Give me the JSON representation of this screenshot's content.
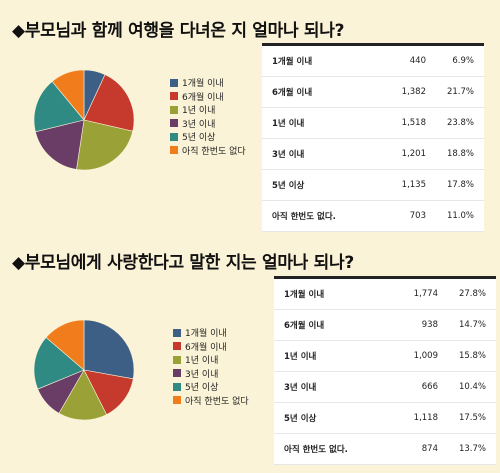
{
  "colors": [
    "#3d5f86",
    "#c63a2e",
    "#9aa136",
    "#6a3d66",
    "#2f8a84",
    "#f07c1c"
  ],
  "chart_data": [
    {
      "type": "pie",
      "title": "◆부모님과 함께 여행을 다녀온 지 얼마나 되나?",
      "categories": [
        "1개월 이내",
        "6개월 이내",
        "1년 이내",
        "3년 이내",
        "5년 이상",
        "아직 한번도 없다"
      ],
      "legend_labels": [
        "1개월 이내",
        "6개월 이내",
        "1년 이내",
        "3년 이내",
        "5년 이상",
        "아직 한번도 없다"
      ],
      "table_labels": [
        "1개월 이내",
        "6개월 이내",
        "1년 이내",
        "3년 이내",
        "5년 이상",
        "아직 한번도 없다."
      ],
      "counts": [
        "440",
        "1,382",
        "1,518",
        "1,201",
        "1,135",
        "703"
      ],
      "percent_labels": [
        "6.9%",
        "21.7%",
        "23.8%",
        "18.8%",
        "17.8%",
        "11.0%"
      ],
      "values": [
        6.9,
        21.7,
        23.8,
        18.8,
        17.8,
        11.0
      ],
      "legend_position": "right"
    },
    {
      "type": "pie",
      "title": "◆부모님에게 사랑한다고 말한 지는 얼마나 되나?",
      "categories": [
        "1개월 이내",
        "6개월 이내",
        "1년 이내",
        "3년 이내",
        "5년 이상",
        "아직 한번도 없다"
      ],
      "legend_labels": [
        "1개월 이내",
        "6개월 이내",
        "1년 이내",
        "3년 이내",
        "5년 이상",
        "아직 한번도 없다"
      ],
      "table_labels": [
        "1개월 이내",
        "6개월 이내",
        "1년 이내",
        "3년 이내",
        "5년 이상",
        "아직 한번도 없다."
      ],
      "counts": [
        "1,774",
        "938",
        "1,009",
        "666",
        "1,118",
        "874"
      ],
      "percent_labels": [
        "27.8%",
        "14.7%",
        "15.8%",
        "10.4%",
        "17.5%",
        "13.7%"
      ],
      "values": [
        27.8,
        14.7,
        15.8,
        10.4,
        17.5,
        13.7
      ],
      "legend_position": "right"
    }
  ]
}
